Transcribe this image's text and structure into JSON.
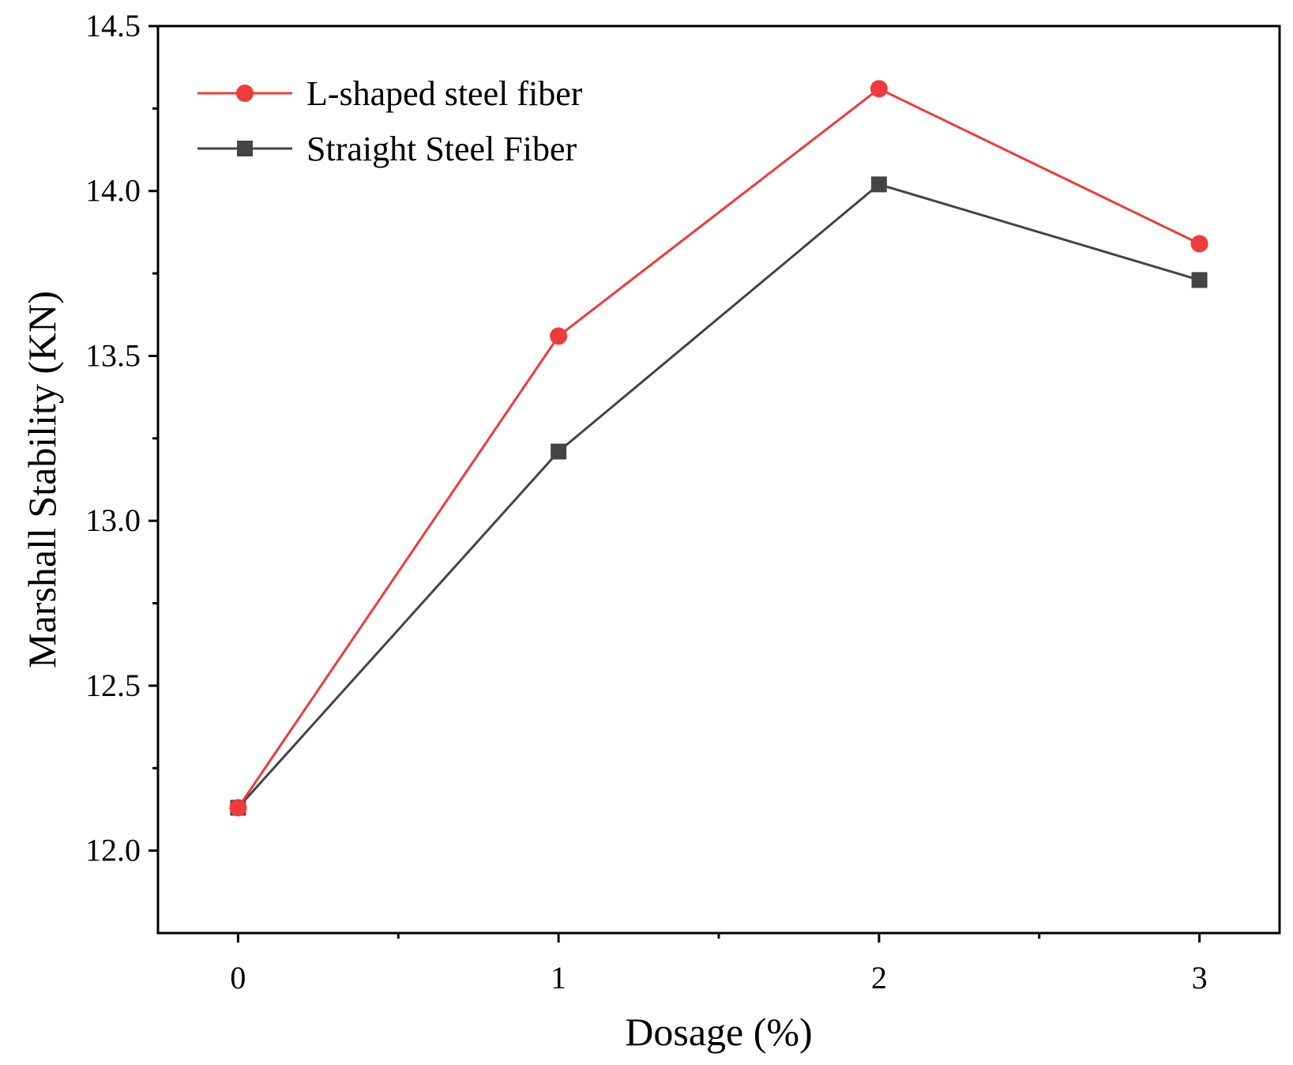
{
  "chart_data": {
    "type": "line",
    "title": "",
    "xlabel": "Dosage (%)",
    "ylabel": "Marshall Stability (KN)",
    "x": [
      0,
      1,
      2,
      3
    ],
    "xticks": [
      "0",
      "1",
      "2",
      "3"
    ],
    "xlim": [
      -0.25,
      3.25
    ],
    "ylim": [
      11.75,
      14.5
    ],
    "yticks": [
      "12.0",
      "12.5",
      "13.0",
      "13.5",
      "14.0",
      "14.5"
    ],
    "legend_position": "top-left",
    "grid": false,
    "series": [
      {
        "name": "L-shaped steel fiber",
        "values": [
          12.13,
          13.56,
          14.31,
          13.84
        ],
        "color": "#ef3b3b",
        "marker": "circle"
      },
      {
        "name": "Straight Steel Fiber",
        "values": [
          12.13,
          13.21,
          14.02,
          13.73
        ],
        "color": "#444444",
        "marker": "square"
      }
    ]
  }
}
